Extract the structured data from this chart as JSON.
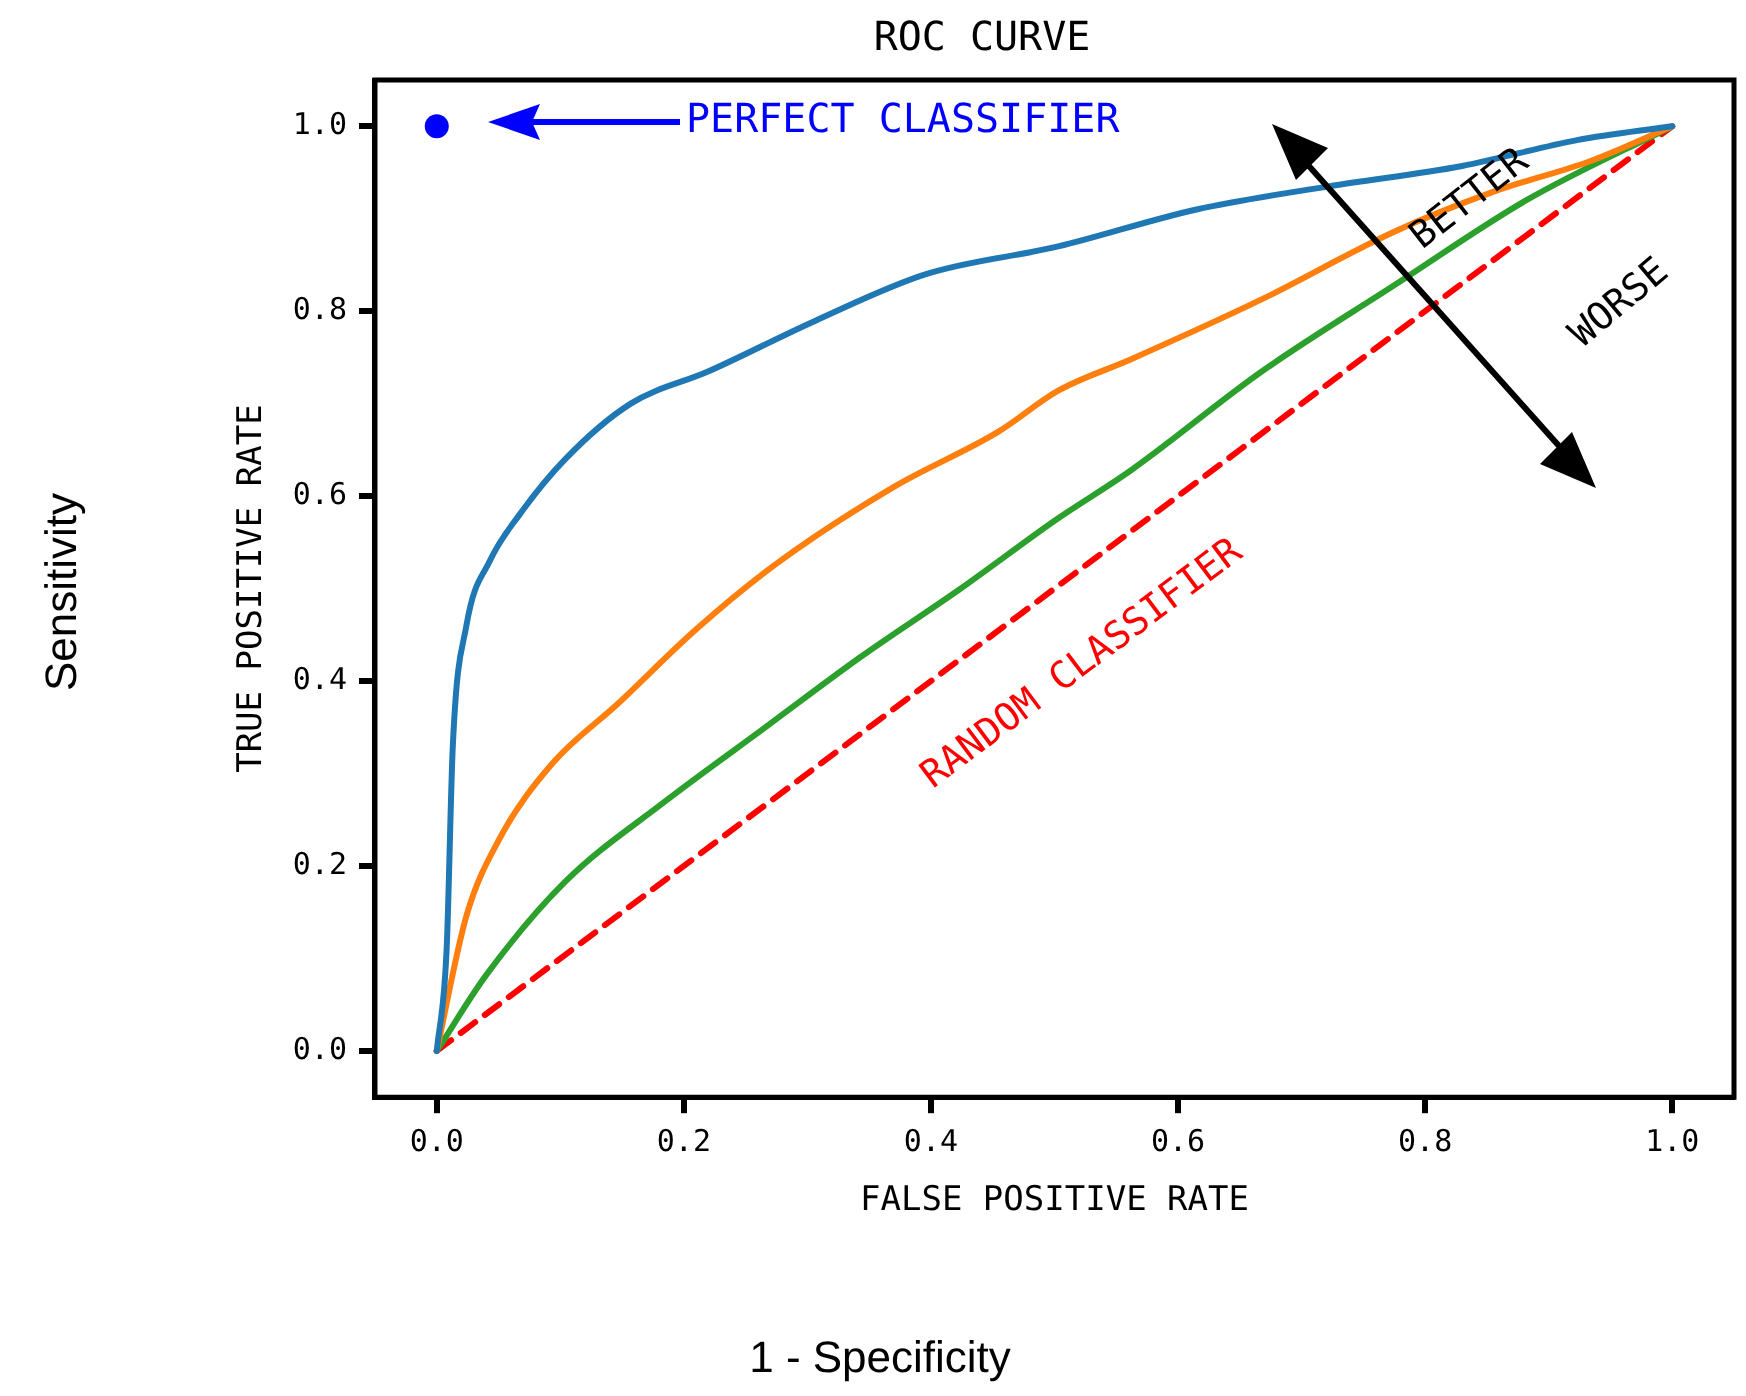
{
  "chart_data": {
    "type": "line",
    "title": "ROC CURVE",
    "xlabel": "FALSE POSITIVE RATE",
    "ylabel": "TRUE POSITIVE RATE",
    "xlim": [
      -0.05,
      1.05
    ],
    "ylim": [
      -0.05,
      1.05
    ],
    "xticks": [
      {
        "value": 0,
        "label": "0.0"
      },
      0.2,
      0.4,
      0.6,
      0.8,
      {
        "value": 1,
        "label": "1.0"
      }
    ],
    "yticks": [
      {
        "value": 0,
        "label": "0.0"
      },
      0.2,
      0.4,
      0.6,
      0.8,
      {
        "value": 1,
        "label": "1.0"
      }
    ],
    "grid": false,
    "legend": false,
    "marker": "none",
    "series": [
      {
        "color": "#1f77b4",
        "x": [
          0,
          0.008,
          0.013,
          0.024,
          0.043,
          0.067,
          0.104,
          0.157,
          0.22,
          0.307,
          0.396,
          0.503,
          0.615,
          0.722,
          0.83,
          0.923,
          1
        ],
        "values": [
          0,
          0.11,
          0.33,
          0.46,
          0.53,
          0.58,
          0.64,
          0.7,
          0.735,
          0.79,
          0.84,
          0.87,
          0.91,
          0.935,
          0.957,
          0.985,
          1
        ]
      },
      {
        "color": "#ff7f0e",
        "x": [
          0,
          0.024,
          0.051,
          0.093,
          0.147,
          0.21,
          0.275,
          0.37,
          0.455,
          0.503,
          0.562,
          0.668,
          0.775,
          0.855,
          0.935,
          1
        ],
        "values": [
          0,
          0.146,
          0.23,
          0.31,
          0.376,
          0.456,
          0.527,
          0.61,
          0.67,
          0.714,
          0.748,
          0.813,
          0.886,
          0.929,
          0.963,
          1
        ]
      },
      {
        "color": "#2ca02c",
        "x": [
          0,
          0.04,
          0.104,
          0.184,
          0.264,
          0.343,
          0.423,
          0.503,
          0.562,
          0.668,
          0.775,
          0.882,
          1
        ],
        "values": [
          0,
          0.082,
          0.183,
          0.269,
          0.348,
          0.426,
          0.499,
          0.576,
          0.628,
          0.735,
          0.828,
          0.92,
          1
        ]
      },
      {
        "color": "#ff0000",
        "line_style": "dashed",
        "x": [
          0,
          1
        ],
        "values": [
          0,
          1
        ]
      },
      {
        "type": "scatter",
        "marker": "circle",
        "color": "#0000ff",
        "x": [
          0
        ],
        "values": [
          1
        ]
      }
    ],
    "annotations": [
      "PERFECT CLASSIFIER",
      {
        "text": "RANDOM CLASSIFIER",
        "x": 0.5,
        "y": 0.5
      },
      "BETTER",
      "WORSE",
      "Sensitivity",
      "1 - Specificity"
    ]
  }
}
